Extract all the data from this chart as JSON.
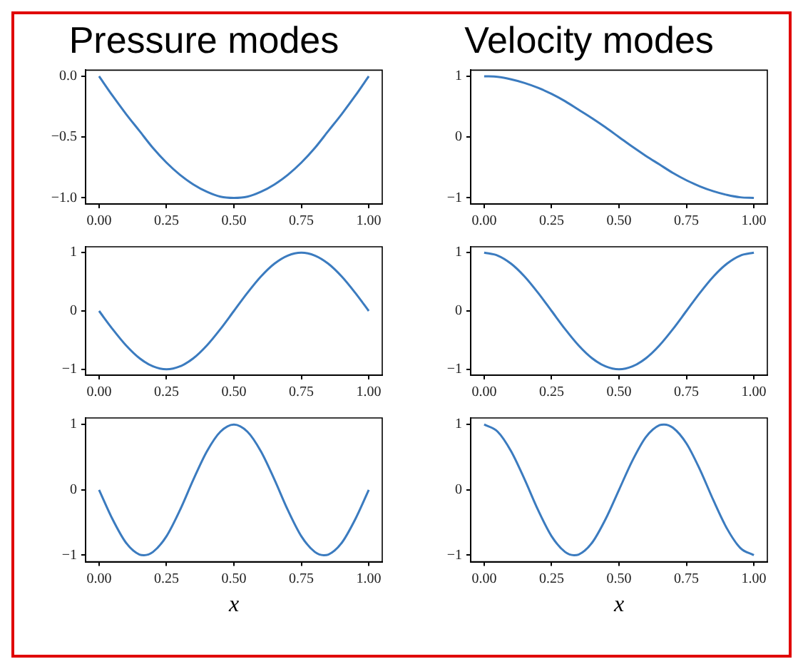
{
  "chart_data": [
    {
      "type": "line",
      "title": "Pressure modes",
      "x": [
        0,
        0.05,
        0.1,
        0.15,
        0.2,
        0.25,
        0.3,
        0.35,
        0.4,
        0.45,
        0.5,
        0.55,
        0.6,
        0.65,
        0.7,
        0.75,
        0.8,
        0.85,
        0.9,
        0.95,
        1
      ],
      "series": [
        {
          "color": "#3b7bbf",
          "values": [
            0,
            -0.16,
            -0.31,
            -0.45,
            -0.59,
            -0.71,
            -0.81,
            -0.89,
            -0.95,
            -0.99,
            -1,
            -0.99,
            -0.95,
            -0.89,
            -0.81,
            -0.71,
            -0.59,
            -0.45,
            -0.31,
            -0.16,
            0
          ]
        }
      ],
      "xlim": [
        -0.05,
        1.05
      ],
      "xticks": [
        {
          "value": 0,
          "label": "0.00"
        },
        {
          "value": 0.25,
          "label": "0.25"
        },
        {
          "value": 0.5,
          "label": "0.50"
        },
        {
          "value": 0.75,
          "label": "0.75"
        },
        {
          "value": 1,
          "label": "1.00"
        }
      ],
      "ylim": [
        -1.05,
        0.05
      ],
      "yticks": [
        {
          "value": 0,
          "label": "0.0"
        },
        {
          "value": -0.5,
          "label": "−0.5"
        },
        {
          "value": -1,
          "label": "−1.0"
        }
      ]
    },
    {
      "type": "line",
      "title": "Velocity modes",
      "x": [
        0,
        0.05,
        0.1,
        0.15,
        0.2,
        0.25,
        0.3,
        0.35,
        0.4,
        0.45,
        0.5,
        0.55,
        0.6,
        0.65,
        0.7,
        0.75,
        0.8,
        0.85,
        0.9,
        0.95,
        1
      ],
      "series": [
        {
          "color": "#3b7bbf",
          "values": [
            1,
            0.99,
            0.95,
            0.89,
            0.81,
            0.71,
            0.59,
            0.45,
            0.31,
            0.16,
            0,
            -0.16,
            -0.31,
            -0.45,
            -0.59,
            -0.71,
            -0.81,
            -0.89,
            -0.95,
            -0.99,
            -1
          ]
        }
      ],
      "xlim": [
        -0.05,
        1.05
      ],
      "xticks": [
        {
          "value": 0,
          "label": "0.00"
        },
        {
          "value": 0.25,
          "label": "0.25"
        },
        {
          "value": 0.5,
          "label": "0.50"
        },
        {
          "value": 0.75,
          "label": "0.75"
        },
        {
          "value": 1,
          "label": "1.00"
        }
      ],
      "ylim": [
        -1.1,
        1.1
      ],
      "yticks": [
        {
          "value": 1,
          "label": "1"
        },
        {
          "value": 0,
          "label": "0"
        },
        {
          "value": -1,
          "label": "−1"
        }
      ]
    },
    {
      "type": "line",
      "x": [
        0,
        0.05,
        0.1,
        0.15,
        0.2,
        0.25,
        0.3,
        0.35,
        0.4,
        0.45,
        0.5,
        0.55,
        0.6,
        0.65,
        0.7,
        0.75,
        0.8,
        0.85,
        0.9,
        0.95,
        1
      ],
      "series": [
        {
          "color": "#3b7bbf",
          "values": [
            0,
            -0.31,
            -0.59,
            -0.81,
            -0.95,
            -1,
            -0.95,
            -0.81,
            -0.59,
            -0.31,
            0,
            0.31,
            0.59,
            0.81,
            0.95,
            1,
            0.95,
            0.81,
            0.59,
            0.31,
            0
          ]
        }
      ],
      "xlim": [
        -0.05,
        1.05
      ],
      "xticks": [
        {
          "value": 0,
          "label": "0.00"
        },
        {
          "value": 0.25,
          "label": "0.25"
        },
        {
          "value": 0.5,
          "label": "0.50"
        },
        {
          "value": 0.75,
          "label": "0.75"
        },
        {
          "value": 1,
          "label": "1.00"
        }
      ],
      "ylim": [
        -1.1,
        1.1
      ],
      "yticks": [
        {
          "value": 1,
          "label": "1"
        },
        {
          "value": 0,
          "label": "0"
        },
        {
          "value": -1,
          "label": "−1"
        }
      ]
    },
    {
      "type": "line",
      "x": [
        0,
        0.05,
        0.1,
        0.15,
        0.2,
        0.25,
        0.3,
        0.35,
        0.4,
        0.45,
        0.5,
        0.55,
        0.6,
        0.65,
        0.7,
        0.75,
        0.8,
        0.85,
        0.9,
        0.95,
        1
      ],
      "series": [
        {
          "color": "#3b7bbf",
          "values": [
            1,
            0.95,
            0.81,
            0.59,
            0.31,
            0,
            -0.31,
            -0.59,
            -0.81,
            -0.95,
            -1,
            -0.95,
            -0.81,
            -0.59,
            -0.31,
            0,
            0.31,
            0.59,
            0.81,
            0.95,
            1
          ]
        }
      ],
      "xlim": [
        -0.05,
        1.05
      ],
      "xticks": [
        {
          "value": 0,
          "label": "0.00"
        },
        {
          "value": 0.25,
          "label": "0.25"
        },
        {
          "value": 0.5,
          "label": "0.50"
        },
        {
          "value": 0.75,
          "label": "0.75"
        },
        {
          "value": 1,
          "label": "1.00"
        }
      ],
      "ylim": [
        -1.1,
        1.1
      ],
      "yticks": [
        {
          "value": 1,
          "label": "1"
        },
        {
          "value": 0,
          "label": "0"
        },
        {
          "value": -1,
          "label": "−1"
        }
      ]
    },
    {
      "type": "line",
      "xlabel": "x",
      "x": [
        0,
        0.05,
        0.1,
        0.15,
        0.1667,
        0.2,
        0.25,
        0.3,
        0.35,
        0.4,
        0.45,
        0.5,
        0.55,
        0.6,
        0.65,
        0.7,
        0.75,
        0.8,
        0.8333,
        0.85,
        0.9,
        0.95,
        1
      ],
      "series": [
        {
          "color": "#3b7bbf",
          "values": [
            0,
            -0.45,
            -0.81,
            -0.99,
            -1,
            -0.95,
            -0.71,
            -0.31,
            0.16,
            0.59,
            0.89,
            1,
            0.89,
            0.59,
            0.16,
            -0.31,
            -0.71,
            -0.95,
            -1,
            -0.99,
            -0.81,
            -0.45,
            0
          ]
        }
      ],
      "xlim": [
        -0.05,
        1.05
      ],
      "xticks": [
        {
          "value": 0,
          "label": "0.00"
        },
        {
          "value": 0.25,
          "label": "0.25"
        },
        {
          "value": 0.5,
          "label": "0.50"
        },
        {
          "value": 0.75,
          "label": "0.75"
        },
        {
          "value": 1,
          "label": "1.00"
        }
      ],
      "ylim": [
        -1.1,
        1.1
      ],
      "yticks": [
        {
          "value": 1,
          "label": "1"
        },
        {
          "value": 0,
          "label": "0"
        },
        {
          "value": -1,
          "label": "−1"
        }
      ]
    },
    {
      "type": "line",
      "xlabel": "x",
      "x": [
        0,
        0.05,
        0.1,
        0.15,
        0.2,
        0.25,
        0.3,
        0.3333,
        0.35,
        0.4,
        0.45,
        0.5,
        0.55,
        0.6,
        0.65,
        0.6667,
        0.7,
        0.75,
        0.8,
        0.85,
        0.9,
        0.95,
        1
      ],
      "series": [
        {
          "color": "#3b7bbf",
          "values": [
            1,
            0.89,
            0.59,
            0.16,
            -0.31,
            -0.71,
            -0.95,
            -1,
            -0.99,
            -0.81,
            -0.45,
            0,
            0.45,
            0.81,
            0.99,
            1,
            0.95,
            0.71,
            0.31,
            -0.16,
            -0.59,
            -0.89,
            -1
          ]
        }
      ],
      "xlim": [
        -0.05,
        1.05
      ],
      "xticks": [
        {
          "value": 0,
          "label": "0.00"
        },
        {
          "value": 0.25,
          "label": "0.25"
        },
        {
          "value": 0.5,
          "label": "0.50"
        },
        {
          "value": 0.75,
          "label": "0.75"
        },
        {
          "value": 1,
          "label": "1.00"
        }
      ],
      "ylim": [
        -1.1,
        1.1
      ],
      "yticks": [
        {
          "value": 1,
          "label": "1"
        },
        {
          "value": 0,
          "label": "0"
        },
        {
          "value": -1,
          "label": "−1"
        }
      ]
    }
  ]
}
